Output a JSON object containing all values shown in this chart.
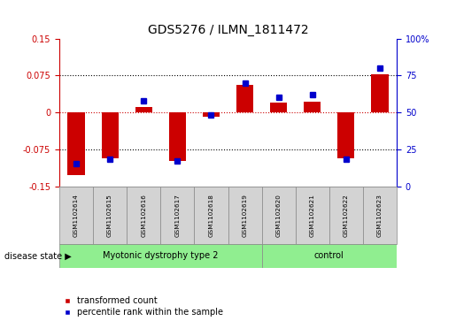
{
  "title": "GDS5276 / ILMN_1811472",
  "samples": [
    "GSM1102614",
    "GSM1102615",
    "GSM1102616",
    "GSM1102617",
    "GSM1102618",
    "GSM1102619",
    "GSM1102620",
    "GSM1102621",
    "GSM1102622",
    "GSM1102623"
  ],
  "transformed_count": [
    -0.128,
    -0.093,
    0.01,
    -0.098,
    -0.008,
    0.055,
    0.02,
    0.022,
    -0.093,
    0.078
  ],
  "percentile_rank": [
    15,
    18,
    58,
    17,
    48,
    70,
    60,
    62,
    18,
    80
  ],
  "disease_groups": [
    {
      "label": "Myotonic dystrophy type 2",
      "start": 0,
      "end": 5,
      "color": "#90EE90"
    },
    {
      "label": "control",
      "start": 6,
      "end": 9,
      "color": "#90EE90"
    }
  ],
  "ylim_left": [
    -0.15,
    0.15
  ],
  "ylim_right": [
    0,
    100
  ],
  "yticks_left": [
    -0.15,
    -0.075,
    0,
    0.075,
    0.15
  ],
  "yticks_left_labels": [
    "-0.15",
    "-0.075",
    "0",
    "0.075",
    "0.15"
  ],
  "yticks_right": [
    0,
    25,
    50,
    75,
    100
  ],
  "yticks_right_labels": [
    "0",
    "25",
    "50",
    "75",
    "100%"
  ],
  "bar_color": "#CC0000",
  "dot_color": "#0000CC",
  "grid_color": "#000000",
  "zero_line_color": "#CC0000",
  "header_bg": "#D3D3D3",
  "legend_bar_label": "transformed count",
  "legend_dot_label": "percentile rank within the sample",
  "disease_state_label": "disease state"
}
